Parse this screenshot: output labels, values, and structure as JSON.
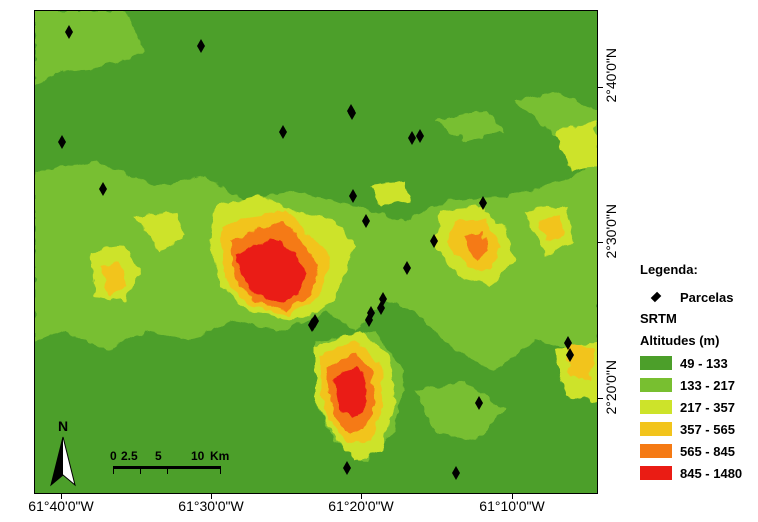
{
  "map": {
    "colors": {
      "c1": "#4c9f2a",
      "c2": "#78bf30",
      "c3": "#cde32a",
      "c4": "#f2c41c",
      "c5": "#f57a14",
      "c6": "#ea1c14"
    },
    "north_label": "N",
    "scale_bar": {
      "ticks": [
        "0",
        "2.5",
        "5",
        "10"
      ],
      "unit": "Km"
    },
    "parcelas": [
      {
        "id": "p1"
      },
      {
        "id": "p2"
      },
      {
        "id": "p3"
      },
      {
        "id": "p4"
      },
      {
        "id": "p5"
      },
      {
        "id": "p6"
      },
      {
        "id": "p7"
      },
      {
        "id": "p8"
      },
      {
        "id": "p9"
      },
      {
        "id": "p10"
      },
      {
        "id": "p11"
      },
      {
        "id": "p12"
      },
      {
        "id": "p13"
      },
      {
        "id": "p14"
      },
      {
        "id": "p15"
      },
      {
        "id": "p16"
      },
      {
        "id": "p17"
      },
      {
        "id": "p18"
      },
      {
        "id": "p19"
      },
      {
        "id": "p20"
      },
      {
        "id": "p21"
      },
      {
        "id": "p22"
      },
      {
        "id": "p23"
      },
      {
        "id": "p24"
      },
      {
        "id": "p25"
      },
      {
        "id": "p26"
      }
    ]
  },
  "axes": {
    "bottom_ticks": [
      "61°40'0\"W",
      "61°30'0\"W",
      "61°20'0\"W",
      "61°10'0\"W"
    ],
    "right_ticks": [
      "2°40'0\"N",
      "2°30'0\"N",
      "2°20'0\"N"
    ]
  },
  "legend": {
    "title": "Legenda:",
    "points_label": "Parcelas",
    "raster_label": "SRTM",
    "raster_sublabel": "Altitudes (m)",
    "classes": [
      {
        "label": "49 - 133",
        "color": "#4c9f2a"
      },
      {
        "label": "133 - 217",
        "color": "#78bf30"
      },
      {
        "label": "217 - 357",
        "color": "#cde32a"
      },
      {
        "label": "357 - 565",
        "color": "#f2c41c"
      },
      {
        "label": "565 - 845",
        "color": "#f57a14"
      },
      {
        "label": "845 - 1480",
        "color": "#ea1c14"
      }
    ]
  }
}
